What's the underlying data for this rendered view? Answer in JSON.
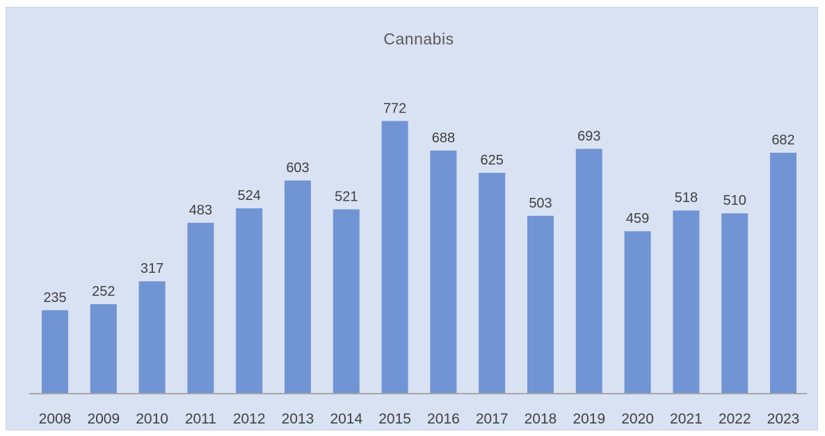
{
  "chart_data": {
    "type": "bar",
    "title": "Cannabis",
    "categories": [
      "2008",
      "2009",
      "2010",
      "2011",
      "2012",
      "2013",
      "2014",
      "2015",
      "2016",
      "2017",
      "2018",
      "2019",
      "2020",
      "2021",
      "2022",
      "2023"
    ],
    "values": [
      235,
      252,
      317,
      483,
      524,
      603,
      521,
      772,
      688,
      625,
      503,
      693,
      459,
      518,
      510,
      682
    ],
    "xlabel": "",
    "ylabel": "",
    "ylim": [
      0,
      1000
    ],
    "grid": false,
    "legend": "none",
    "data_labels": true,
    "colors": {
      "bar": "#7094d4",
      "background": "#d9e2f3",
      "axis": "#a6a6a6",
      "text": "#404040"
    }
  }
}
